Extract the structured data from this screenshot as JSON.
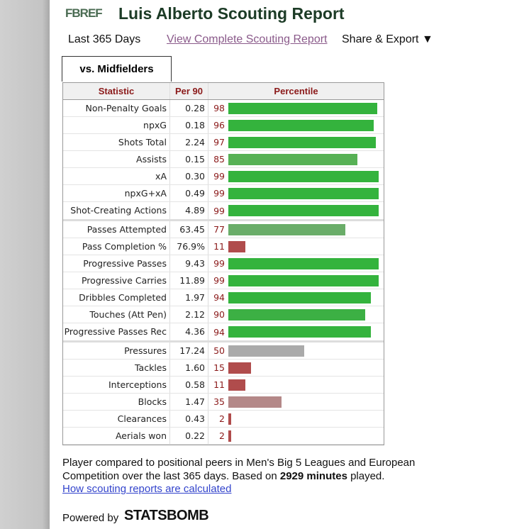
{
  "header": {
    "logo": "FBREF",
    "title": "Luis Alberto Scouting Report"
  },
  "nav": {
    "period": "Last 365 Days",
    "link": "View Complete Scouting Report",
    "share": "Share & Export ▼"
  },
  "tab": "vs. Midfielders",
  "table": {
    "columns": [
      "Statistic",
      "Per 90",
      "Percentile"
    ],
    "groups": [
      [
        {
          "statistic": "Non-Penalty Goals",
          "per90": "0.28",
          "percentile": 98,
          "color": "#34b33d"
        },
        {
          "statistic": "npxG",
          "per90": "0.18",
          "percentile": 96,
          "color": "#34b33d"
        },
        {
          "statistic": "Shots Total",
          "per90": "2.24",
          "percentile": 97,
          "color": "#34b33d"
        },
        {
          "statistic": "Assists",
          "per90": "0.15",
          "percentile": 85,
          "color": "#57b155"
        },
        {
          "statistic": "xA",
          "per90": "0.30",
          "percentile": 99,
          "color": "#34b33d"
        },
        {
          "statistic": "npxG+xA",
          "per90": "0.49",
          "percentile": 99,
          "color": "#34b33d"
        },
        {
          "statistic": "Shot-Creating Actions",
          "per90": "4.89",
          "percentile": 99,
          "color": "#34b33d"
        }
      ],
      [
        {
          "statistic": "Passes Attempted",
          "per90": "63.45",
          "percentile": 77,
          "color": "#6aad69"
        },
        {
          "statistic": "Pass Completion %",
          "per90": "76.9%",
          "percentile": 11,
          "color": "#b04c4c"
        },
        {
          "statistic": "Progressive Passes",
          "per90": "9.43",
          "percentile": 99,
          "color": "#34b33d"
        },
        {
          "statistic": "Progressive Carries",
          "per90": "11.89",
          "percentile": 99,
          "color": "#34b33d"
        },
        {
          "statistic": "Dribbles Completed",
          "per90": "1.97",
          "percentile": 94,
          "color": "#34b33d"
        },
        {
          "statistic": "Touches (Att Pen)",
          "per90": "2.12",
          "percentile": 90,
          "color": "#3cb044"
        },
        {
          "statistic": "Progressive Passes Rec",
          "per90": "4.36",
          "percentile": 94,
          "color": "#34b33d"
        }
      ],
      [
        {
          "statistic": "Pressures",
          "per90": "17.24",
          "percentile": 50,
          "color": "#aaaaaa"
        },
        {
          "statistic": "Tackles",
          "per90": "1.60",
          "percentile": 15,
          "color": "#b04c4c"
        },
        {
          "statistic": "Interceptions",
          "per90": "0.58",
          "percentile": 11,
          "color": "#b04c4c"
        },
        {
          "statistic": "Blocks",
          "per90": "1.47",
          "percentile": 35,
          "color": "#b48888"
        },
        {
          "statistic": "Clearances",
          "per90": "0.43",
          "percentile": 2,
          "color": "#b04c4c"
        },
        {
          "statistic": "Aerials won",
          "per90": "0.22",
          "percentile": 2,
          "color": "#b04c4c"
        }
      ]
    ]
  },
  "footer": {
    "text_before": "Player compared to positional peers in Men's Big 5 Leagues and European Competition over the last 365 days. Based on ",
    "bold": "2929 minutes",
    "text_after": " played.",
    "link": "How scouting reports are calculated",
    "powered_by": "Powered by",
    "brand": "STATSBOMB"
  }
}
